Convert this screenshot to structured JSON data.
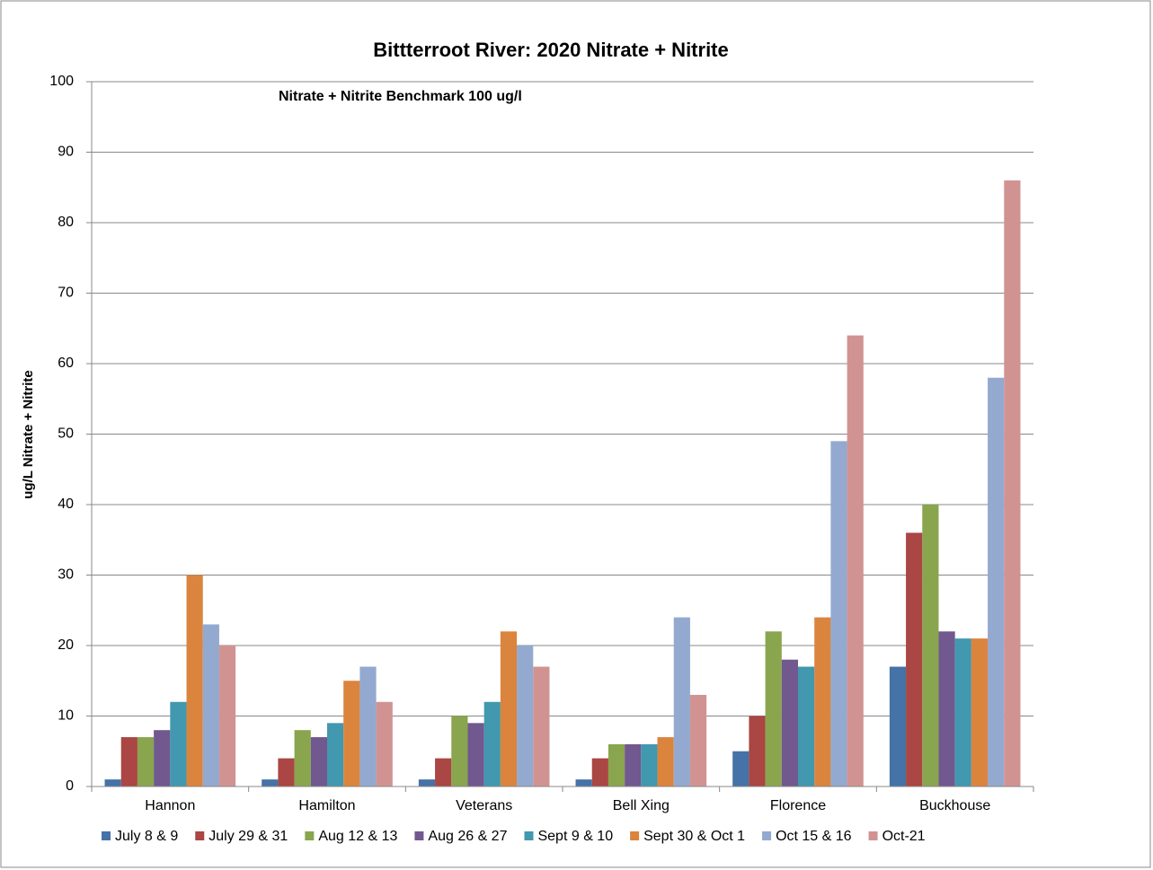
{
  "chart_data": {
    "type": "bar",
    "title": "Bittterroot River: 2020 Nitrate + Nitrite",
    "annotation": "Nitrate + Nitrite Benchmark 100 ug/l",
    "y_label": "ug/L Nitrate + Nitrite",
    "categories": [
      "Hannon",
      "Hamilton",
      "Veterans",
      "Bell Xing",
      "Florence",
      "Buckhouse"
    ],
    "series": [
      {
        "name": "July 8 & 9",
        "color": "#4572a7",
        "values": [
          1,
          1,
          1,
          1,
          5,
          17
        ]
      },
      {
        "name": "July 29 & 31",
        "color": "#aa4643",
        "values": [
          7,
          4,
          4,
          4,
          10,
          36
        ]
      },
      {
        "name": "Aug 12 & 13",
        "color": "#89a54e",
        "values": [
          7,
          8,
          10,
          6,
          22,
          40
        ]
      },
      {
        "name": "Aug 26 & 27",
        "color": "#71588f",
        "values": [
          8,
          7,
          9,
          6,
          18,
          22
        ]
      },
      {
        "name": "Sept 9 & 10",
        "color": "#4198af",
        "values": [
          12,
          9,
          12,
          6,
          17,
          21
        ]
      },
      {
        "name": "Sept 30 & Oct 1",
        "color": "#db843d",
        "values": [
          30,
          15,
          22,
          7,
          24,
          21
        ]
      },
      {
        "name": "Oct 15 & 16",
        "color": "#93a9cf",
        "values": [
          23,
          17,
          20,
          24,
          49,
          58
        ]
      },
      {
        "name": "Oct-21",
        "color": "#d19392",
        "values": [
          20,
          12,
          17,
          13,
          64,
          86
        ]
      }
    ],
    "ylim": [
      0,
      100
    ],
    "yticks": [
      0,
      10,
      20,
      30,
      40,
      50,
      60,
      70,
      80,
      90,
      100
    ],
    "grid": true
  }
}
